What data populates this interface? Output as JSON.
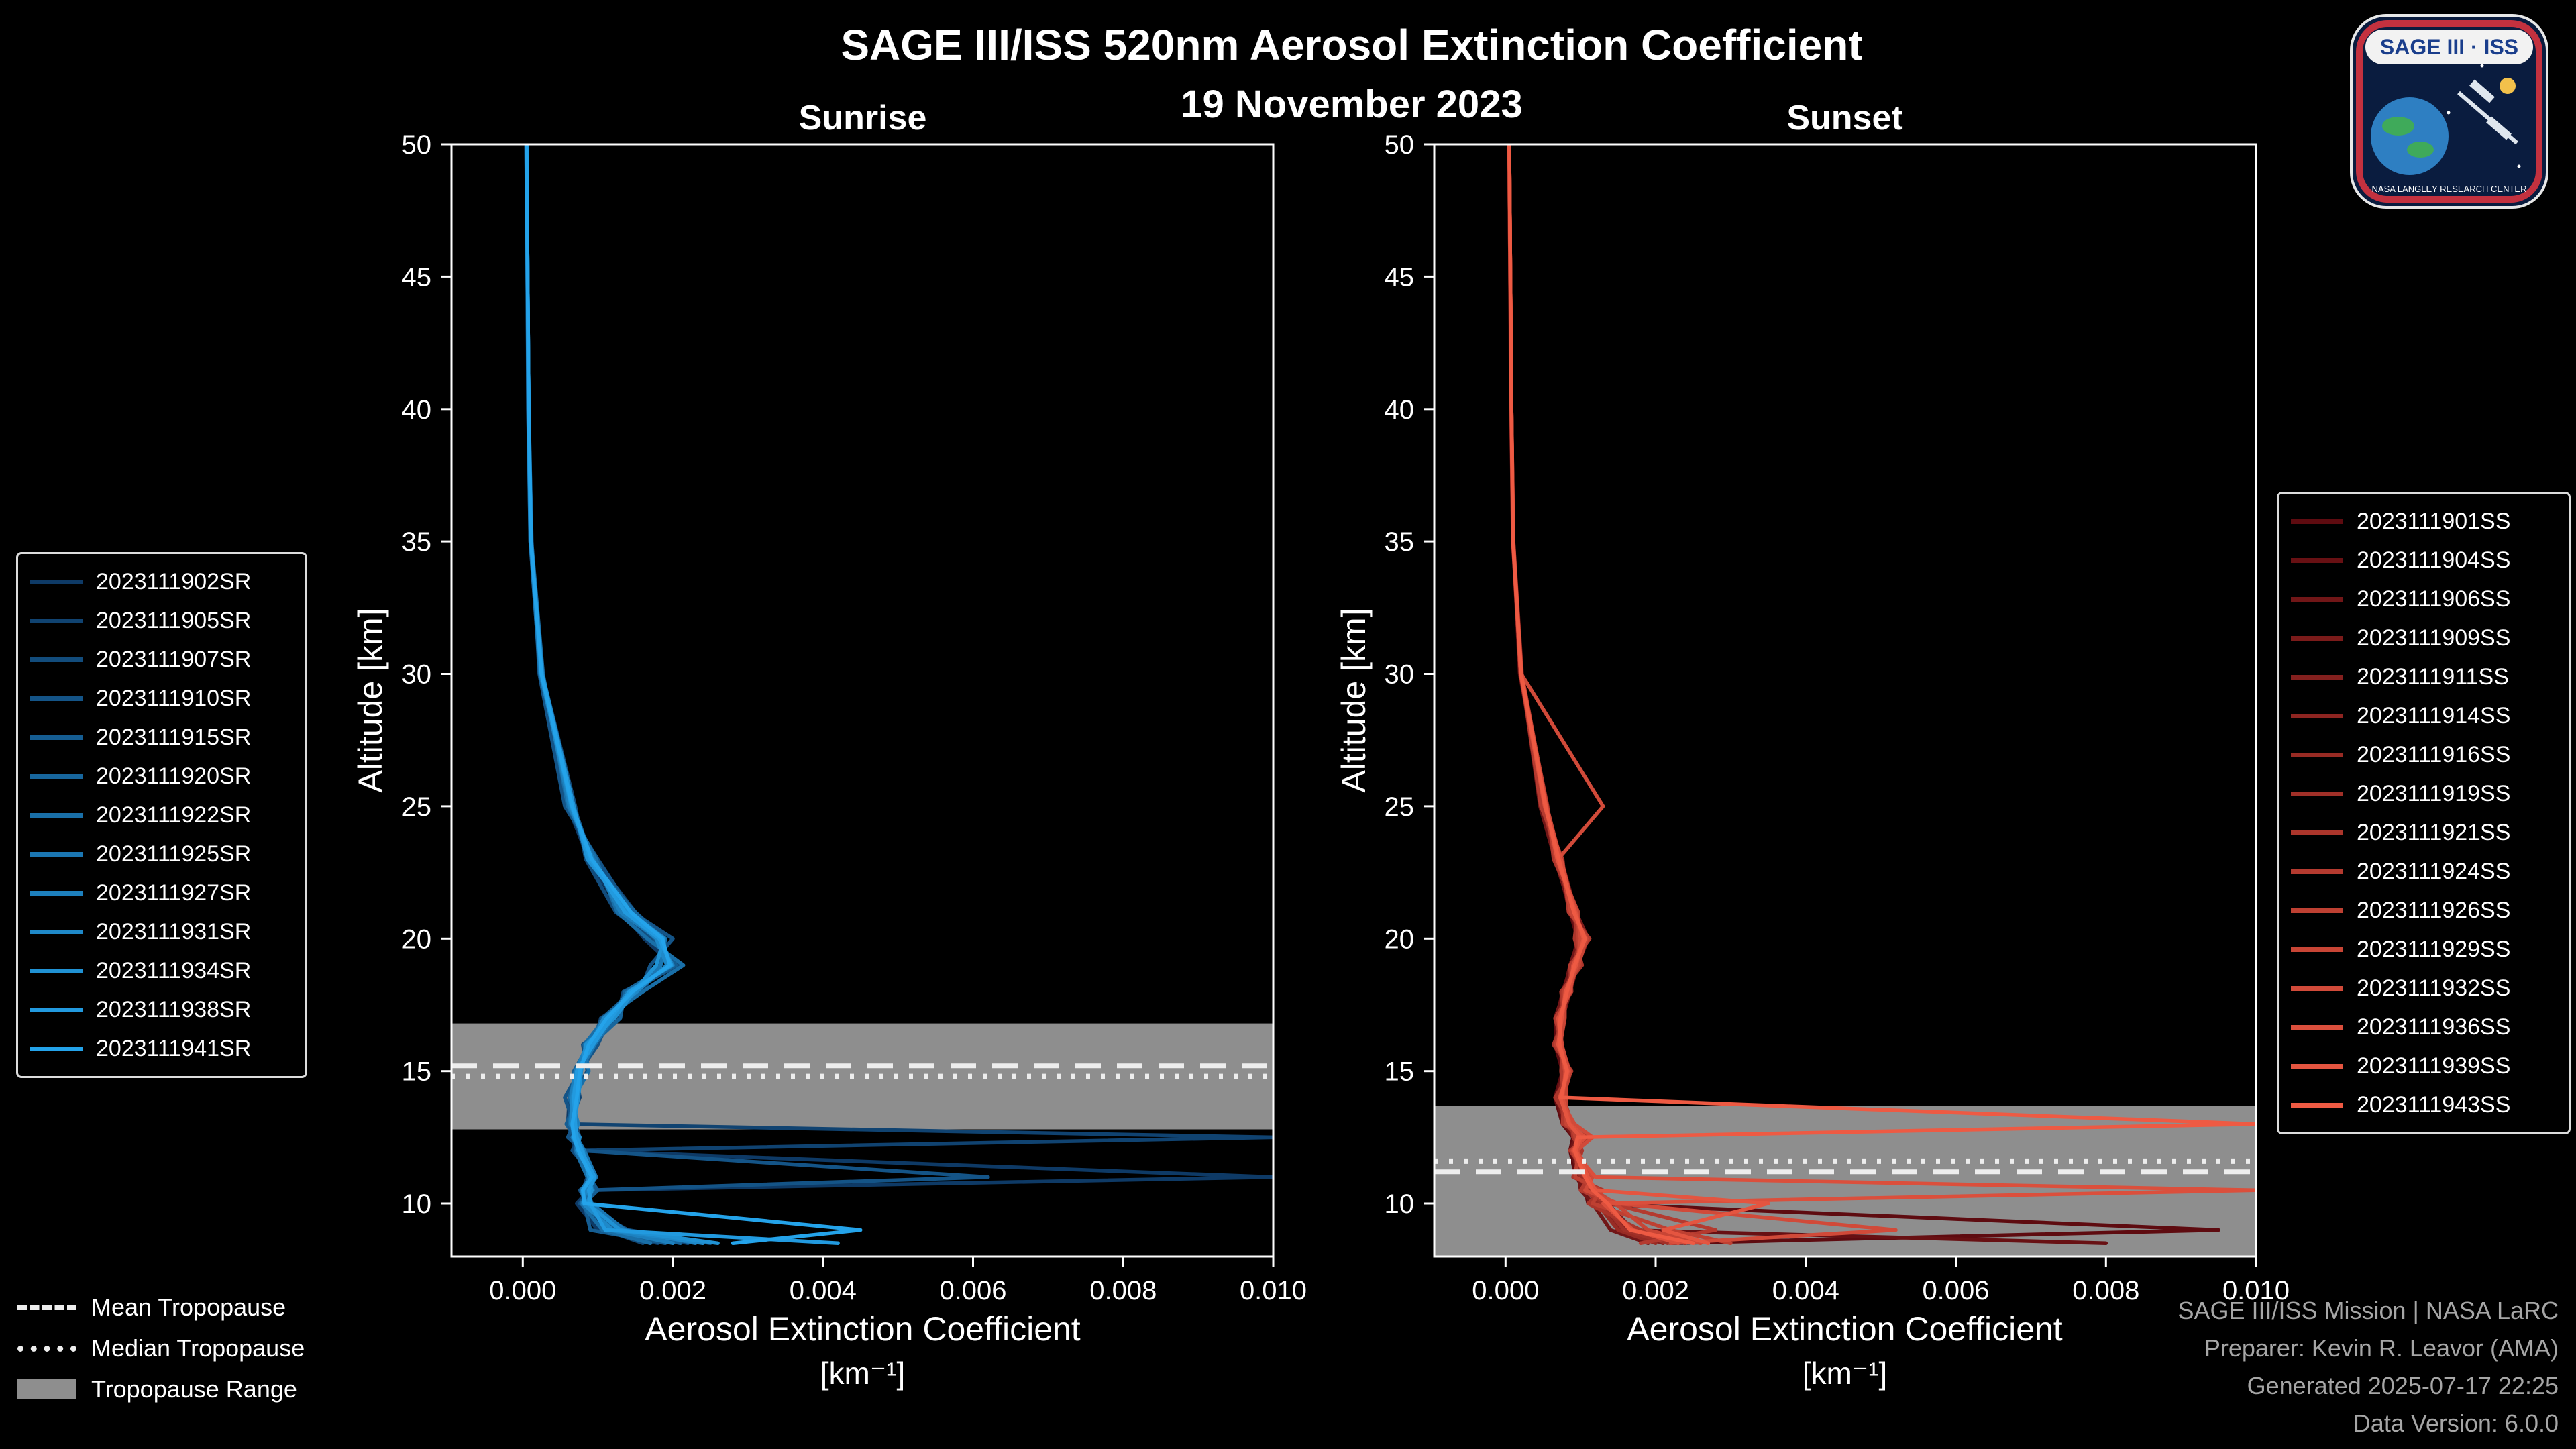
{
  "header": {
    "title": "SAGE III/ISS 520nm Aerosol Extinction Coefficient",
    "date": "19 November 2023"
  },
  "logo": {
    "title": "SAGE III · ISS",
    "org": "NASA LANGLEY RESEARCH CENTER"
  },
  "footer": {
    "lines": [
      "SAGE III/ISS Mission | NASA LaRC",
      "Preparer: Kevin R. Leavor (AMA)",
      "Generated 2025-07-17 22:25",
      "Data Version: 6.0.0"
    ]
  },
  "chart_data": {
    "type": "line",
    "title": "SAGE III/ISS 520nm Aerosol Extinction Coefficient",
    "subtitle": "19 November 2023",
    "xlabel": "Aerosol Extinction Coefficient",
    "xlabel_units": "[km⁻¹]",
    "ylabel": "Altitude [km]",
    "xlim": [
      -0.00095,
      0.01
    ],
    "ylim": [
      8,
      50
    ],
    "grid": false,
    "x_ticks": [
      0,
      0.002,
      0.004,
      0.006,
      0.008,
      0.01
    ],
    "x_tick_labels": [
      "0.000",
      "0.002",
      "0.004",
      "0.006",
      "0.008",
      "0.010"
    ],
    "y_ticks": [
      10,
      15,
      20,
      25,
      30,
      35,
      40,
      45,
      50
    ],
    "band_color": "#8e8e8e",
    "tropopause_line_color": "#ededed",
    "altitudes": [
      50,
      40,
      35,
      30,
      25,
      23,
      21,
      20,
      19,
      18,
      17,
      16,
      15,
      14,
      13,
      12.5,
      12,
      11,
      10.5,
      10,
      9,
      8.5
    ],
    "extra_legend": [
      {
        "label": "Mean Tropopause",
        "style": "dashed"
      },
      {
        "label": "Median Tropopause",
        "style": "dotted"
      },
      {
        "label": "Tropopause Range",
        "style": "band"
      }
    ],
    "panels": [
      {
        "key": "sunrise",
        "name": "Sunrise",
        "color_start": "#0e3a66",
        "color_end": "#24a3ea",
        "legend_position": "left",
        "tropopause": {
          "mean": 15.2,
          "median": 14.8,
          "range": [
            12.8,
            16.8
          ]
        },
        "series": [
          {
            "label": "2023111902SR",
            "values": [
              5e-05,
              7e-05,
              0.0001,
              0.00023,
              0.0006,
              0.00088,
              0.00132,
              0.00162,
              0.002,
              0.00142,
              0.0011,
              0.00084,
              0.00076,
              0.00062,
              0.0006,
              0.00066,
              0.0007,
              0.01,
              0.00088,
              0.00072,
              0.001,
              0.0018
            ]
          },
          {
            "label": "2023111905SR",
            "values": [
              5e-05,
              8e-05,
              0.00011,
              0.00024,
              0.00062,
              0.00096,
              0.0015,
              0.0019,
              0.0018,
              0.0016,
              0.00104,
              0.00096,
              0.0007,
              0.00076,
              0.00062,
              0.01,
              0.0008,
              0.00086,
              0.0008,
              0.0009,
              0.0013,
              0.0022
            ]
          },
          {
            "label": "2023111907SR",
            "values": [
              4.5e-05,
              7.5e-05,
              0.000105,
              0.00026,
              0.0007,
              0.00084,
              0.00124,
              0.00172,
              0.0021,
              0.00134,
              0.00126,
              0.0008,
              0.00086,
              0.00066,
              0.0007,
              0.00076,
              0.00066,
              0.00096,
              0.00076,
              0.00086,
              0.0011,
              0.0016
            ]
          },
          {
            "label": "2023111910SR",
            "values": [
              5e-05,
              8e-05,
              0.00012,
              0.00022,
              0.00056,
              0.001,
              0.00146,
              0.002,
              0.0017,
              0.00156,
              0.00116,
              0.001,
              0.00076,
              0.00056,
              0.00068,
              0.0006,
              0.0008,
              0.0062,
              0.0009,
              0.00076,
              0.0014,
              0.0025
            ]
          },
          {
            "label": "2023111915SR",
            "values": [
              5e-05,
              7.6e-05,
              0.00011,
              0.00025,
              0.00068,
              0.00092,
              0.00136,
              0.00176,
              0.00204,
              0.00146,
              0.00106,
              0.00088,
              0.00068,
              0.00072,
              0.00058,
              0.0007,
              0.00078,
              0.00088,
              0.001,
              0.00082,
              0.0009,
              0.0019
            ]
          },
          {
            "label": "2023111920SR",
            "values": [
              4.6e-05,
              8e-05,
              0.000106,
              0.00024,
              0.00064,
              0.00088,
              0.0015,
              0.00186,
              0.00194,
              0.00136,
              0.0013,
              0.00092,
              0.00072,
              0.00062,
              0.00072,
              0.00068,
              0.00074,
              0.00092,
              0.00082,
              0.00088,
              0.00126,
              0.0021
            ]
          },
          {
            "label": "2023111922SR",
            "values": [
              5e-05,
              8e-05,
              0.000116,
              0.00027,
              0.0006,
              0.00098,
              0.00126,
              0.00166,
              0.00214,
              0.0016,
              0.0011,
              0.00082,
              0.00088,
              0.00068,
              0.00062,
              0.00074,
              0.0007,
              0.00086,
              0.00094,
              0.00078,
              0.00106,
              0.0017
            ]
          },
          {
            "label": "2023111925SR",
            "values": [
              5e-05,
              7.2e-05,
              0.0001,
              0.00023,
              0.00066,
              0.0009,
              0.0014,
              0.0019,
              0.00184,
              0.0015,
              0.0012,
              0.00096,
              0.00076,
              0.0007,
              0.00066,
              0.00072,
              0.00082,
              0.00098,
              0.00086,
              0.00092,
              0.00136,
              0.0023
            ]
          },
          {
            "label": "2023111927SR",
            "values": [
              5e-05,
              8e-05,
              0.00011,
              0.00025,
              0.00062,
              0.00094,
              0.0013,
              0.0018,
              0.002,
              0.0014,
              0.00116,
              0.00086,
              0.0007,
              0.00064,
              0.00074,
              0.00066,
              0.00076,
              0.0009,
              0.00078,
              0.00084,
              0.00116,
              0.002
            ]
          },
          {
            "label": "2023111931SR",
            "values": [
              5e-05,
              8e-05,
              0.00011,
              0.00024,
              0.00064,
              0.00092,
              0.00138,
              0.00178,
              0.00192,
              0.00152,
              0.00108,
              0.0009,
              0.00074,
              0.00066,
              0.00064,
              0.00076,
              0.00072,
              0.00094,
              0.00084,
              0.0008,
              0.0012,
              0.0024
            ]
          },
          {
            "label": "2023111934SR",
            "values": [
              5e-05,
              7.6e-05,
              0.000106,
              0.00026,
              0.00068,
              0.00086,
              0.00142,
              0.00188,
              0.00178,
              0.00148,
              0.00122,
              0.00084,
              0.00078,
              0.00074,
              0.00068,
              0.0007,
              0.0008,
              0.00088,
              0.00092,
              0.00086,
              0.0013,
              0.0026
            ]
          },
          {
            "label": "2023111938SR",
            "values": [
              5e-05,
              8e-05,
              0.00011,
              0.00025,
              0.00065,
              0.0009,
              0.00136,
              0.00182,
              0.00198,
              0.00142,
              0.00118,
              0.00094,
              0.00072,
              0.00068,
              0.0007,
              0.00072,
              0.00078,
              0.00096,
              0.00088,
              0.0009,
              0.0011,
              0.0042
            ]
          },
          {
            "label": "2023111941SR",
            "values": [
              5e-05,
              8e-05,
              0.00011,
              0.00025,
              0.00066,
              0.00092,
              0.00144,
              0.00186,
              0.00196,
              0.00146,
              0.00112,
              0.00088,
              0.00076,
              0.00072,
              0.00066,
              0.00068,
              0.00074,
              0.00092,
              0.0008,
              0.00082,
              0.0045,
              0.0028
            ]
          }
        ]
      },
      {
        "key": "sunset",
        "name": "Sunset",
        "color_start": "#5e0b10",
        "color_end": "#ee5a43",
        "legend_position": "right",
        "tropopause": {
          "mean": 11.2,
          "median": 11.6,
          "range": [
            8.0,
            13.7
          ]
        },
        "series": [
          {
            "label": "2023111901SS",
            "values": [
              5e-05,
              7e-05,
              0.0001,
              0.0002,
              0.00048,
              0.00068,
              0.00086,
              0.00096,
              0.00088,
              0.00076,
              0.00068,
              0.00066,
              0.00076,
              0.00066,
              0.00076,
              0.0009,
              0.00086,
              0.00094,
              0.00106,
              0.0011,
              0.0095,
              0.0022
            ]
          },
          {
            "label": "2023111904SS",
            "values": [
              5e-05,
              8e-05,
              0.0001,
              0.00019,
              0.00052,
              0.00072,
              0.00092,
              0.00106,
              0.00094,
              0.00084,
              0.00074,
              0.00068,
              0.00084,
              0.00074,
              0.00084,
              0.00096,
              0.00094,
              0.00106,
              0.00116,
              0.0013,
              0.0016,
              0.008
            ]
          },
          {
            "label": "2023111906SS",
            "values": [
              4.6e-05,
              7.6e-05,
              9.6e-05,
              0.00021,
              0.00046,
              0.00066,
              0.00088,
              0.00098,
              0.00086,
              0.00078,
              0.00066,
              0.00072,
              0.00078,
              0.00068,
              0.00078,
              0.00092,
              0.00088,
              0.00098,
              0.001,
              0.00116,
              0.0014,
              0.0019
            ]
          },
          {
            "label": "2023111909SS",
            "values": [
              5e-05,
              8e-05,
              0.000106,
              0.00022,
              0.00054,
              0.00074,
              0.00094,
              0.0011,
              0.00096,
              0.00086,
              0.00076,
              0.00074,
              0.00086,
              0.00076,
              0.00086,
              0.00106,
              0.00096,
              0.0011,
              0.0012,
              0.00136,
              0.0017,
              0.0024
            ]
          },
          {
            "label": "2023111911SS",
            "values": [
              5e-05,
              7.6e-05,
              0.0001,
              0.0002,
              0.0005,
              0.0007,
              0.0009,
              0.00102,
              0.00092,
              0.00082,
              0.00072,
              0.0007,
              0.00082,
              0.00072,
              0.00082,
              0.00098,
              0.00092,
              0.00102,
              0.0011,
              0.00126,
              0.00156,
              0.0021
            ]
          },
          {
            "label": "2023111914SS",
            "values": [
              5e-05,
              8e-05,
              0.0001,
              0.00021,
              0.00052,
              0.00072,
              0.00092,
              0.00106,
              0.00094,
              0.00084,
              0.00074,
              0.00072,
              0.00084,
              0.00074,
              0.00084,
              0.00102,
              0.00094,
              0.00106,
              0.00116,
              0.0013,
              0.0016,
              0.0022
            ]
          },
          {
            "label": "2023111916SS",
            "values": [
              4.6e-05,
              7.6e-05,
              9.8e-05,
              0.0002,
              0.00049,
              0.00069,
              0.00089,
              0.001,
              0.0009,
              0.0008,
              0.0007,
              0.00069,
              0.0008,
              0.0007,
              0.0008,
              0.00096,
              0.0009,
              0.001,
              0.00108,
              0.00122,
              0.0015,
              0.002
            ]
          },
          {
            "label": "2023111919SS",
            "values": [
              5e-05,
              8e-05,
              0.000102,
              0.000206,
              0.00051,
              0.00071,
              0.00091,
              0.00104,
              0.00093,
              0.00083,
              0.00073,
              0.00071,
              0.00083,
              0.00073,
              0.00083,
              0.001,
              0.00093,
              0.00104,
              0.00112,
              0.00128,
              0.00158,
              0.00216
            ]
          },
          {
            "label": "2023111921SS",
            "values": [
              5e-05,
              7.8e-05,
              0.0001,
              0.0002,
              0.00056,
              0.00064,
              0.00096,
              0.00092,
              0.00102,
              0.00074,
              0.00078,
              0.00064,
              0.00088,
              0.00066,
              0.00088,
              0.0009,
              0.00102,
              0.0009,
              0.0013,
              0.0011,
              0.0018,
              0.0024
            ]
          },
          {
            "label": "2023111924SS",
            "values": [
              5e-05,
              8e-05,
              0.000106,
              0.00021,
              0.00047,
              0.00076,
              0.00084,
              0.00112,
              0.00086,
              0.00088,
              0.00066,
              0.00076,
              0.00074,
              0.00078,
              0.00076,
              0.0011,
              0.00086,
              0.00112,
              0.001,
              0.0014,
              0.0028,
              0.0018
            ]
          },
          {
            "label": "2023111926SS",
            "values": [
              5e-05,
              7.6e-05,
              0.0001,
              0.0002,
              0.00053,
              0.00067,
              0.00097,
              0.00097,
              0.00099,
              0.00077,
              0.00077,
              0.00067,
              0.00087,
              0.00077,
              0.00089,
              0.00093,
              0.00097,
              0.00093,
              0.00126,
              0.00116,
              0.0022,
              0.003
            ]
          },
          {
            "label": "2023111929SS",
            "values": [
              5e-05,
              8e-05,
              0.0001,
              0.000216,
              0.00055,
              0.00073,
              0.00087,
              0.00108,
              0.00097,
              0.00079,
              0.00079,
              0.00073,
              0.00079,
              0.00081,
              0.00081,
              0.00106,
              0.00089,
              0.00108,
              0.00118,
              0.00146,
              0.0019,
              0.0026
            ]
          },
          {
            "label": "2023111932SS",
            "values": [
              5e-05,
              8e-05,
              0.000104,
              0.00021,
              0.0013,
              0.0007,
              0.00095,
              0.001,
              0.00095,
              0.00085,
              0.00072,
              0.00075,
              0.00085,
              0.00072,
              0.00092,
              0.00116,
              0.00095,
              0.00116,
              0.00106,
              0.0015,
              0.0052,
              0.0022
            ]
          },
          {
            "label": "2023111936SS",
            "values": [
              5e-05,
              8e-05,
              0.0001,
              0.0002,
              0.00052,
              0.00074,
              0.00092,
              0.00106,
              0.0009,
              0.00086,
              0.0007,
              0.00074,
              0.0008,
              0.00076,
              0.00086,
              0.00106,
              0.0009,
              0.0012,
              0.01,
              0.0013,
              0.0017,
              0.0023
            ]
          },
          {
            "label": "2023111939SS",
            "values": [
              5e-05,
              7.9e-05,
              0.000102,
              0.000206,
              0.00054,
              0.00069,
              0.00093,
              0.00104,
              0.00094,
              0.0008,
              0.00075,
              0.0007,
              0.00083,
              0.00073,
              0.00085,
              0.001,
              0.00094,
              0.0011,
              0.0012,
              0.0035,
              0.0021,
              0.0027
            ]
          },
          {
            "label": "2023111943SS",
            "values": [
              5e-05,
              8e-05,
              0.0001,
              0.00021,
              0.00053,
              0.00071,
              0.00091,
              0.00106,
              0.00092,
              0.00082,
              0.00073,
              0.00072,
              0.00082,
              0.00074,
              0.01,
              0.00096,
              0.00092,
              0.00106,
              0.00116,
              0.00136,
              0.00166,
              0.0025
            ]
          }
        ]
      }
    ]
  }
}
